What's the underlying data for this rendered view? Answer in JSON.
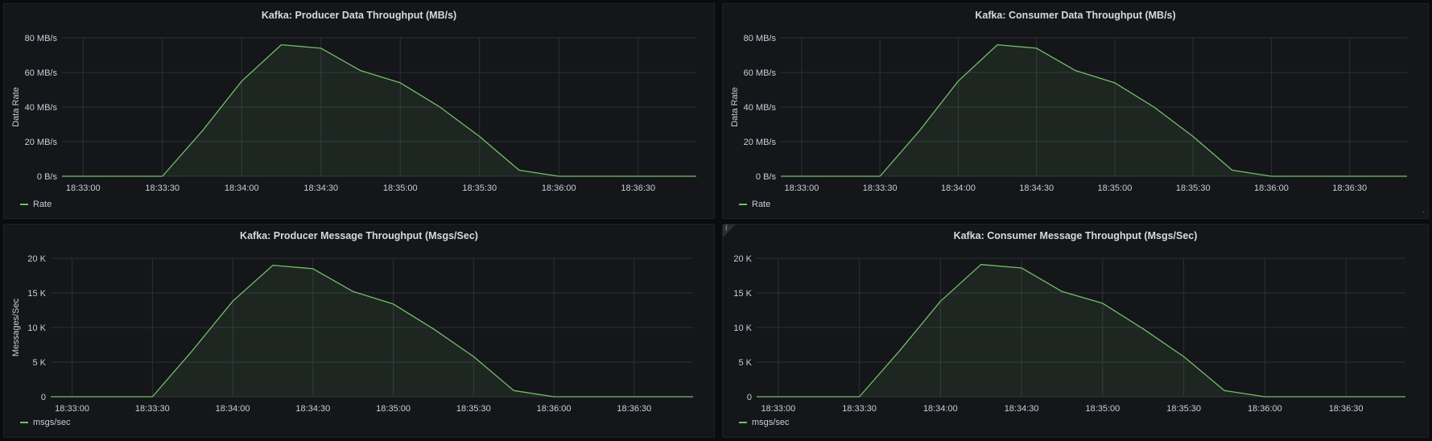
{
  "panels": [
    {
      "id": "producer-data",
      "title": "Kafka: Producer Data Throughput (MB/s)",
      "legend": "Rate",
      "chart_data": {
        "type": "area",
        "title": "Kafka: Producer Data Throughput (MB/s)",
        "ylabel": "Data Rate",
        "xlabel": "",
        "unit": "MB/s",
        "ylim": [
          0,
          80
        ],
        "yticks": [
          0,
          20,
          40,
          60,
          80
        ],
        "ytick_labels": [
          "0 B/s",
          "20 MB/s",
          "40 MB/s",
          "60 MB/s",
          "80 MB/s"
        ],
        "xlim": [
          "18:32:52",
          "18:36:52"
        ],
        "xticks": [
          "18:33:00",
          "18:33:30",
          "18:34:00",
          "18:34:30",
          "18:35:00",
          "18:35:30",
          "18:36:00",
          "18:36:30"
        ],
        "grid": true,
        "legend_position": "bottom-left",
        "series": [
          {
            "name": "Rate",
            "color": "#73bf69",
            "x": [
              "18:32:52",
              "18:33:30",
              "18:33:45",
              "18:34:00",
              "18:34:15",
              "18:34:30",
              "18:34:45",
              "18:35:00",
              "18:35:15",
              "18:35:30",
              "18:35:45",
              "18:36:00",
              "18:36:15",
              "18:36:30",
              "18:36:52"
            ],
            "values": [
              0,
              0,
              26,
              55,
              76,
              74,
              61,
              54,
              40,
              23,
              3.5,
              0,
              0,
              0,
              0
            ]
          }
        ]
      }
    },
    {
      "id": "consumer-data",
      "title": "Kafka: Consumer Data Throughput (MB/s)",
      "legend": "Rate",
      "chart_data": {
        "type": "area",
        "title": "Kafka: Consumer Data Throughput (MB/s)",
        "ylabel": "Data Rate",
        "xlabel": "",
        "unit": "MB/s",
        "ylim": [
          0,
          80
        ],
        "yticks": [
          0,
          20,
          40,
          60,
          80
        ],
        "ytick_labels": [
          "0 B/s",
          "20 MB/s",
          "40 MB/s",
          "60 MB/s",
          "80 MB/s"
        ],
        "xlim": [
          "18:32:52",
          "18:36:52"
        ],
        "xticks": [
          "18:33:00",
          "18:33:30",
          "18:34:00",
          "18:34:30",
          "18:35:00",
          "18:35:30",
          "18:36:00",
          "18:36:30"
        ],
        "grid": true,
        "legend_position": "bottom-left",
        "series": [
          {
            "name": "Rate",
            "color": "#73bf69",
            "x": [
              "18:32:52",
              "18:33:30",
              "18:33:45",
              "18:34:00",
              "18:34:15",
              "18:34:30",
              "18:34:45",
              "18:35:00",
              "18:35:15",
              "18:35:30",
              "18:35:45",
              "18:36:00",
              "18:36:15",
              "18:36:30",
              "18:36:52"
            ],
            "values": [
              0,
              0,
              26,
              55,
              76,
              74,
              61,
              54,
              40,
              23,
              3.5,
              0,
              0,
              0,
              0
            ]
          }
        ]
      }
    },
    {
      "id": "producer-msgs",
      "title": "Kafka: Producer Message Throughput (Msgs/Sec)",
      "legend": "msgs/sec",
      "chart_data": {
        "type": "area",
        "title": "Kafka: Producer Message Throughput (Msgs/Sec)",
        "ylabel": "Messages/Sec",
        "xlabel": "",
        "unit": "msgs/sec",
        "ylim": [
          0,
          20000
        ],
        "yticks": [
          0,
          5000,
          10000,
          15000,
          20000
        ],
        "ytick_labels": [
          "0",
          "5 K",
          "10 K",
          "15 K",
          "20 K"
        ],
        "xlim": [
          "18:32:52",
          "18:36:52"
        ],
        "xticks": [
          "18:33:00",
          "18:33:30",
          "18:34:00",
          "18:34:30",
          "18:35:00",
          "18:35:30",
          "18:36:00",
          "18:36:30"
        ],
        "grid": true,
        "legend_position": "bottom-left",
        "series": [
          {
            "name": "msgs/sec",
            "color": "#73bf69",
            "x": [
              "18:32:52",
              "18:33:30",
              "18:33:45",
              "18:34:00",
              "18:34:15",
              "18:34:30",
              "18:34:45",
              "18:35:00",
              "18:35:15",
              "18:35:30",
              "18:35:45",
              "18:36:00",
              "18:36:15",
              "18:36:30",
              "18:36:52"
            ],
            "values": [
              0,
              0,
              6700,
              13800,
              19000,
              18500,
              15200,
              13400,
              9800,
              5800,
              900,
              0,
              0,
              0,
              0
            ]
          }
        ]
      }
    },
    {
      "id": "consumer-msgs",
      "title": "Kafka: Consumer Message Throughput (Msgs/Sec)",
      "legend": "msgs/sec",
      "chart_data": {
        "type": "area",
        "title": "Kafka: Consumer Message Throughput (Msgs/Sec)",
        "ylabel": "",
        "xlabel": "",
        "unit": "msgs/sec",
        "ylim": [
          0,
          20000
        ],
        "yticks": [
          0,
          5000,
          10000,
          15000,
          20000
        ],
        "ytick_labels": [
          "0",
          "5 K",
          "10 K",
          "15 K",
          "20 K"
        ],
        "xlim": [
          "18:32:52",
          "18:36:52"
        ],
        "xticks": [
          "18:33:00",
          "18:33:30",
          "18:34:00",
          "18:34:30",
          "18:35:00",
          "18:35:30",
          "18:36:00",
          "18:36:30"
        ],
        "grid": true,
        "legend_position": "bottom-left",
        "series": [
          {
            "name": "msgs/sec",
            "color": "#73bf69",
            "x": [
              "18:32:52",
              "18:33:30",
              "18:33:45",
              "18:34:00",
              "18:34:15",
              "18:34:30",
              "18:34:45",
              "18:35:00",
              "18:35:15",
              "18:35:30",
              "18:35:45",
              "18:36:00",
              "18:36:15",
              "18:36:30",
              "18:36:52"
            ],
            "values": [
              0,
              0,
              6700,
              13800,
              19100,
              18600,
              15200,
              13500,
              9800,
              5800,
              900,
              0,
              0,
              0,
              0
            ]
          }
        ]
      }
    }
  ]
}
